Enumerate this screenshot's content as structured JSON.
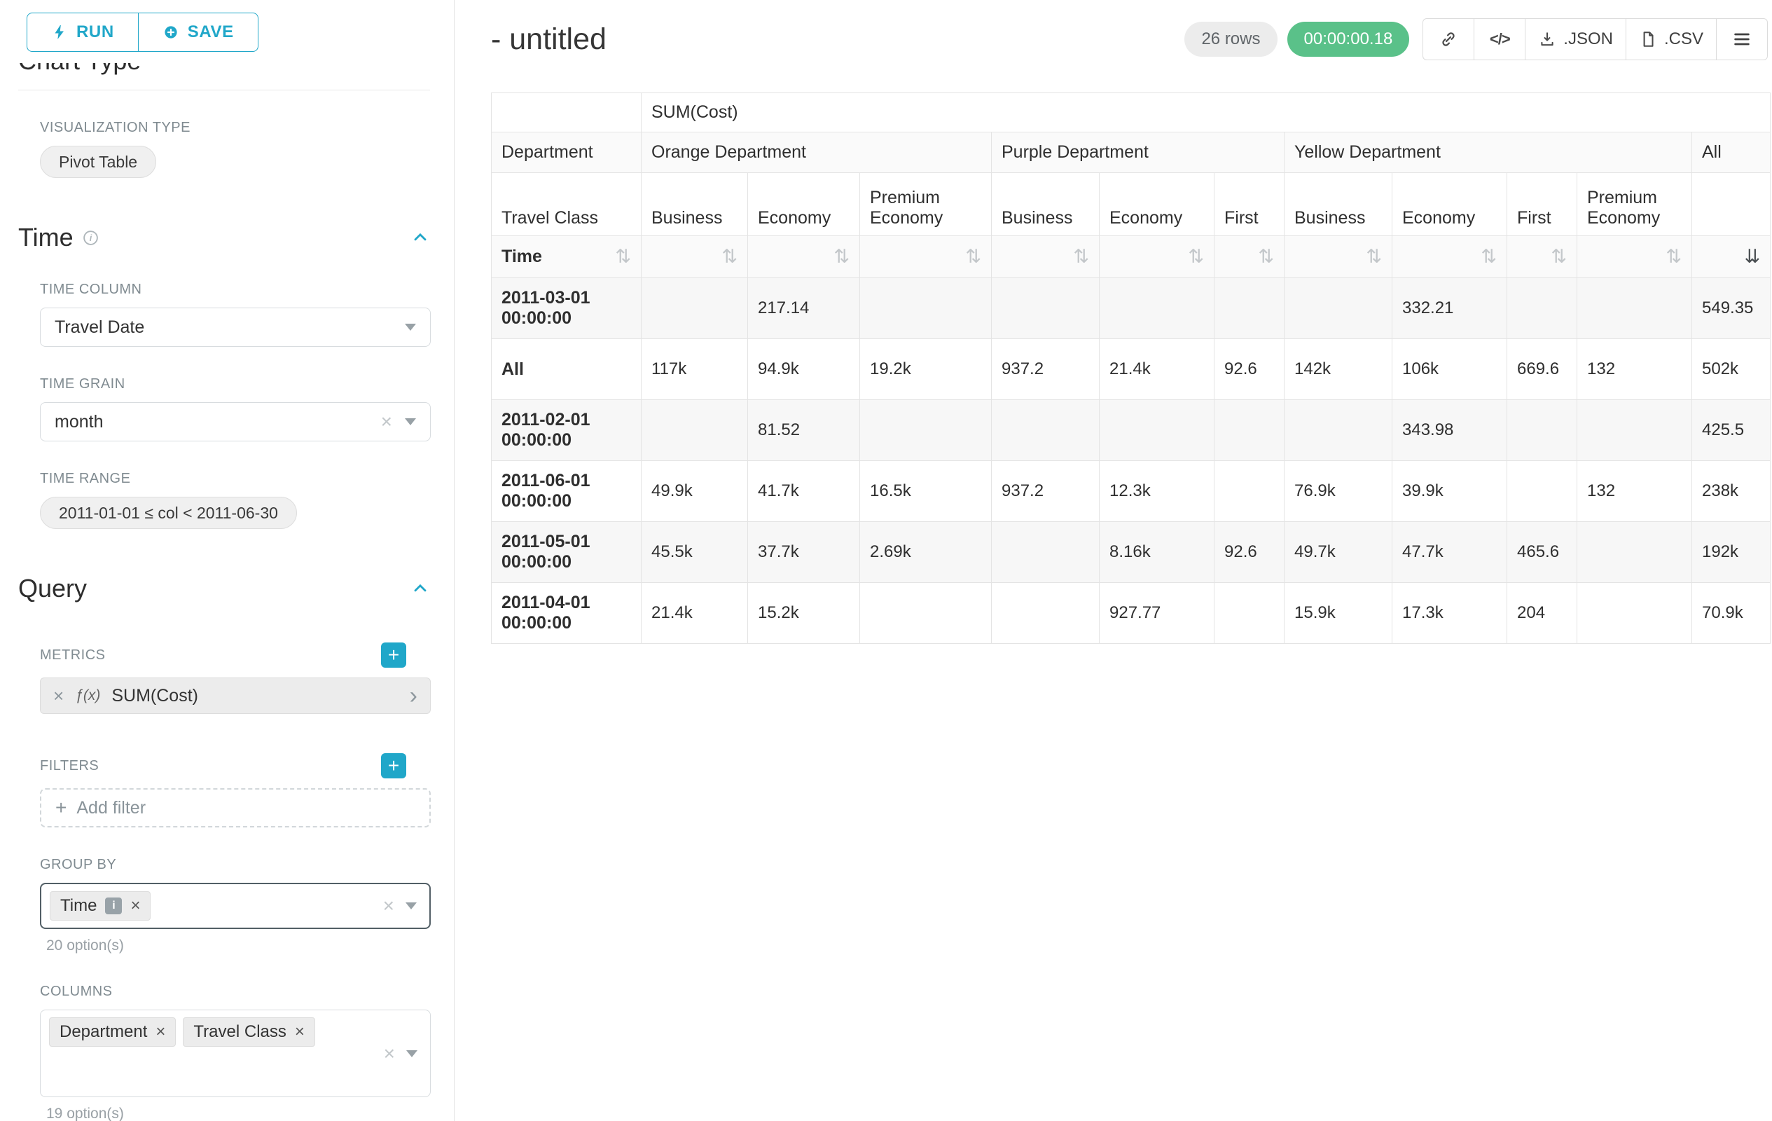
{
  "panel": {
    "run_label": "RUN",
    "save_label": "SAVE",
    "chart_type_heading": "Chart Type",
    "visualization_type_label": "VISUALIZATION TYPE",
    "visualization_type_value": "Pivot Table",
    "time": {
      "heading": "Time",
      "time_column_label": "TIME COLUMN",
      "time_column_value": "Travel Date",
      "time_grain_label": "TIME GRAIN",
      "time_grain_value": "month",
      "time_range_label": "TIME RANGE",
      "time_range_value": "2011-01-01 ≤ col < 2011-06-30"
    },
    "query": {
      "heading": "Query",
      "metrics_label": "METRICS",
      "metric": {
        "fn": "ƒ(x)",
        "name": "SUM(Cost)"
      },
      "filters_label": "FILTERS",
      "add_filter_label": "Add filter",
      "group_by_label": "GROUP BY",
      "group_by_chips": [
        "Time"
      ],
      "group_by_count": "20 option(s)",
      "columns_label": "COLUMNS",
      "columns_chips": [
        "Department",
        "Travel Class"
      ],
      "columns_count": "19 option(s)"
    }
  },
  "header": {
    "title": "- untitled",
    "row_count": "26 rows",
    "timer": "00:00:00.18",
    "json_label": ".JSON",
    "csv_label": ".CSV"
  },
  "icons": {
    "sort": "⇅",
    "sort_desc": "⇊",
    "code": "</>"
  },
  "pivot": {
    "metric_header": "SUM(Cost)",
    "department_axis": "Department",
    "travel_class_axis": "Travel Class",
    "time_axis": "Time",
    "all_label": "All",
    "groups": [
      {
        "name": "Orange Department",
        "classes": [
          "Business",
          "Economy",
          "Premium Economy"
        ]
      },
      {
        "name": "Purple Department",
        "classes": [
          "Business",
          "Economy",
          "First"
        ]
      },
      {
        "name": "Yellow Department",
        "classes": [
          "Business",
          "Economy",
          "First",
          "Premium Economy"
        ]
      }
    ],
    "rows": [
      {
        "label": "2011-03-01 00:00:00",
        "values": [
          "",
          "217.14",
          "",
          "",
          "",
          "",
          "",
          "332.21",
          "",
          "",
          "549.35"
        ]
      },
      {
        "label": "All",
        "values": [
          "117k",
          "94.9k",
          "19.2k",
          "937.2",
          "21.4k",
          "92.6",
          "142k",
          "106k",
          "669.6",
          "132",
          "502k"
        ]
      },
      {
        "label": "2011-02-01 00:00:00",
        "values": [
          "",
          "81.52",
          "",
          "",
          "",
          "",
          "",
          "343.98",
          "",
          "",
          "425.5"
        ]
      },
      {
        "label": "2011-06-01 00:00:00",
        "values": [
          "49.9k",
          "41.7k",
          "16.5k",
          "937.2",
          "12.3k",
          "",
          "76.9k",
          "39.9k",
          "",
          "132",
          "238k"
        ]
      },
      {
        "label": "2011-05-01 00:00:00",
        "values": [
          "45.5k",
          "37.7k",
          "2.69k",
          "",
          "8.16k",
          "92.6",
          "49.7k",
          "47.7k",
          "465.6",
          "",
          "192k"
        ]
      },
      {
        "label": "2011-04-01 00:00:00",
        "values": [
          "21.4k",
          "15.2k",
          "",
          "",
          "927.77",
          "",
          "15.9k",
          "17.3k",
          "204",
          "",
          "70.9k"
        ]
      }
    ]
  }
}
